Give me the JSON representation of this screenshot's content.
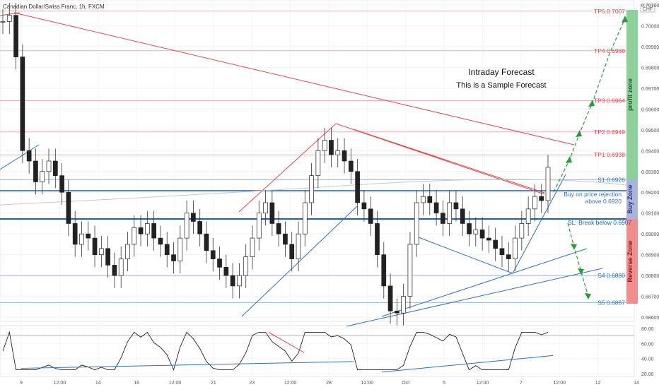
{
  "header": {
    "title": "Canadian Dollar/Swiss Franc, 1h, FXCM",
    "corner_label": "CHF"
  },
  "forecast": {
    "title": "Intraday Forecast",
    "subtitle": "This is a Sample Forecast"
  },
  "zones": {
    "profit": "profit zone",
    "buy": "Buy Zone",
    "reverse": "Reverse Zone"
  },
  "levels": [
    {
      "label": "TP5 0.7007",
      "price": 0.7007,
      "color": "#e5484d"
    },
    {
      "label": "TP4 0.6988",
      "price": 0.6988,
      "color": "#e5484d"
    },
    {
      "label": "TP3 0.6964",
      "price": 0.6964,
      "color": "#e5484d"
    },
    {
      "label": "TP2 0.6949",
      "price": 0.6949,
      "color": "#e5484d"
    },
    {
      "label": "TP1 0.6938",
      "price": 0.6938,
      "color": "#e5484d"
    },
    {
      "label": "S1 0.6926",
      "price": 0.6926,
      "color": "#2f6fc6"
    },
    {
      "label": "S4 0.6880",
      "price": 0.688,
      "color": "#2f6fc6"
    },
    {
      "label": "S5 0.6867",
      "price": 0.6867,
      "color": "#2f6fc6"
    }
  ],
  "annotations": {
    "buy_line1": "Buy on price rejection",
    "buy_line2": "above 0.6920",
    "sl": "SL: Break below 0.6907"
  },
  "chart_data": {
    "type": "candlestick",
    "price_axis": {
      "ticks": [
        "0.70100",
        "0.70000",
        "0.69900",
        "0.69800",
        "0.69700",
        "0.69600",
        "0.69500",
        "0.69400",
        "0.69300",
        "0.69200",
        "0.69100",
        "0.69000",
        "0.68900",
        "0.68800",
        "0.68700",
        "0.68600"
      ],
      "range": [
        0.6858,
        0.7011
      ]
    },
    "time_axis": {
      "ticks": [
        "9",
        "12:00",
        "14",
        "16",
        "12:00",
        "21",
        "23",
        "12:00",
        "28",
        "12:00",
        "Oct",
        "5",
        "12:00",
        "7",
        "12:00",
        "12",
        "14"
      ]
    },
    "key_levels": {
      "buy_above": 0.692,
      "stop_below": 0.6907
    },
    "close_series": [
      0.7002,
      0.7005,
      0.6985,
      0.694,
      0.6935,
      0.6925,
      0.693,
      0.6935,
      0.6928,
      0.692,
      0.6905,
      0.6895,
      0.69,
      0.6898,
      0.689,
      0.6893,
      0.6885,
      0.688,
      0.6888,
      0.6895,
      0.6903,
      0.69,
      0.6905,
      0.6898,
      0.6895,
      0.689,
      0.6887,
      0.6898,
      0.691,
      0.6906,
      0.69,
      0.6892,
      0.6888,
      0.6884,
      0.688,
      0.6875,
      0.688,
      0.6889,
      0.6898,
      0.691,
      0.6915,
      0.6905,
      0.69,
      0.6895,
      0.6888,
      0.69,
      0.6915,
      0.6928,
      0.694,
      0.6945,
      0.6938,
      0.694,
      0.6935,
      0.693,
      0.6915,
      0.6912,
      0.6905,
      0.689,
      0.6875,
      0.6863,
      0.6862,
      0.687,
      0.6895,
      0.6915,
      0.6918,
      0.6915,
      0.691,
      0.6905,
      0.6915,
      0.6912,
      0.6905,
      0.69,
      0.6902,
      0.6898,
      0.6897,
      0.6893,
      0.689,
      0.6888,
      0.6898,
      0.6905,
      0.6912,
      0.6918,
      0.6916,
      0.6932
    ],
    "oscillator": {
      "ticks": [
        "80.00",
        "60.00",
        "40.00",
        "20.00"
      ],
      "range": [
        18,
        82
      ]
    }
  }
}
